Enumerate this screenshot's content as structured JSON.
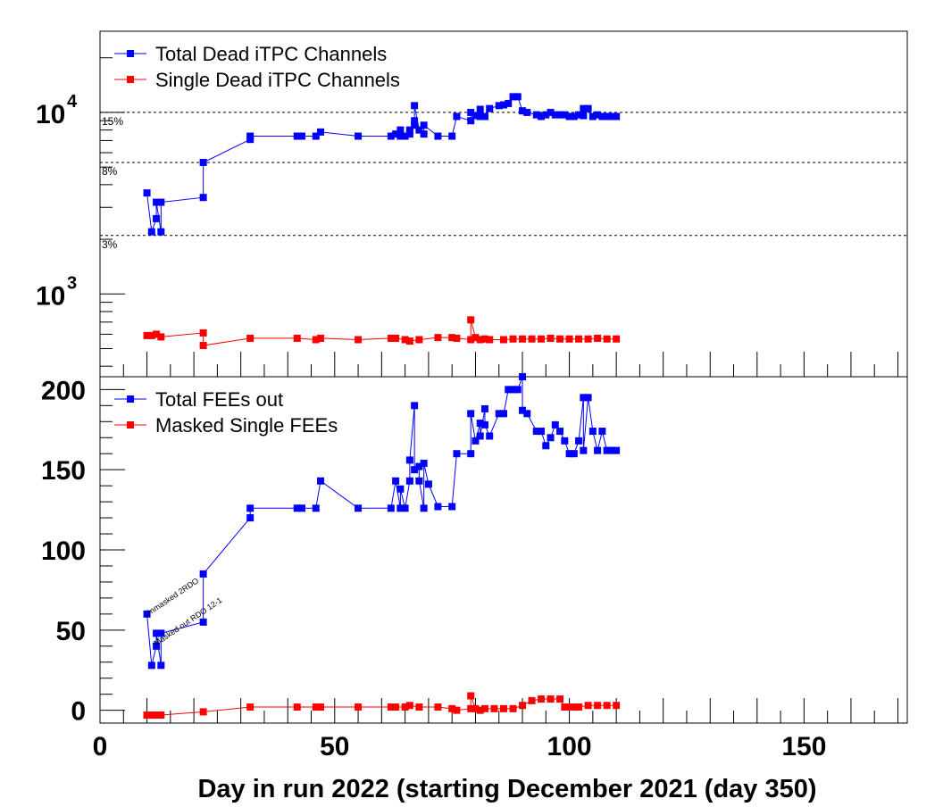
{
  "chart_data": [
    {
      "type": "line",
      "yscale": "log",
      "ylim": [
        350,
        28000
      ],
      "xlim": [
        0,
        172
      ],
      "ytick_labels": [
        {
          "base": "10",
          "exp": "4",
          "value": 10000
        },
        {
          "base": "10",
          "exp": "3",
          "value": 1000
        }
      ],
      "grid": false,
      "reference_lines": [
        {
          "label": "15%",
          "value": 10000
        },
        {
          "label": "8%",
          "value": 5300
        },
        {
          "label": "3%",
          "value": 2100
        }
      ],
      "legend": {
        "placement": "top-left"
      },
      "series": [
        {
          "name": "Total Dead iTPC Channels",
          "color": "#0000ff",
          "points": [
            [
              10,
              3600
            ],
            [
              11,
              2200
            ],
            [
              12,
              2600
            ],
            [
              12,
              3200
            ],
            [
              13,
              2200
            ],
            [
              13,
              3200
            ],
            [
              22,
              3400
            ],
            [
              22,
              5300
            ],
            [
              32,
              7100
            ],
            [
              32,
              7400
            ],
            [
              42,
              7400
            ],
            [
              43,
              7400
            ],
            [
              46,
              7400
            ],
            [
              47,
              7800
            ],
            [
              55,
              7400
            ],
            [
              62,
              7400
            ],
            [
              63,
              7600
            ],
            [
              64,
              7400
            ],
            [
              64,
              8000
            ],
            [
              65,
              7400
            ],
            [
              66,
              7600
            ],
            [
              66,
              8000
            ],
            [
              67,
              8500
            ],
            [
              67,
              9000
            ],
            [
              67,
              10900
            ],
            [
              68,
              8000
            ],
            [
              69,
              7600
            ],
            [
              69,
              8500
            ],
            [
              72,
              7400
            ],
            [
              75,
              7400
            ],
            [
              76,
              9500
            ],
            [
              79,
              9000
            ],
            [
              79,
              10000
            ],
            [
              80,
              9600
            ],
            [
              81,
              10400
            ],
            [
              81,
              9500
            ],
            [
              82,
              9500
            ],
            [
              83,
              10500
            ],
            [
              85,
              10900
            ],
            [
              86,
              11000
            ],
            [
              87,
              11200
            ],
            [
              88,
              12200
            ],
            [
              89,
              12200
            ],
            [
              90,
              10200
            ],
            [
              91,
              10000
            ],
            [
              93,
              9700
            ],
            [
              94,
              9500
            ],
            [
              95,
              9700
            ],
            [
              96,
              10000
            ],
            [
              97,
              9700
            ],
            [
              98,
              9700
            ],
            [
              99,
              9700
            ],
            [
              100,
              9500
            ],
            [
              101,
              9500
            ],
            [
              102,
              9700
            ],
            [
              103,
              10500
            ],
            [
              103,
              9600
            ],
            [
              104,
              10500
            ],
            [
              105,
              9500
            ],
            [
              106,
              9700
            ],
            [
              107,
              9500
            ],
            [
              108,
              9500
            ],
            [
              109,
              9500
            ],
            [
              110,
              9500
            ]
          ]
        },
        {
          "name": "Single Dead iTPC Channels",
          "color": "#ff0000",
          "points": [
            [
              10,
              590
            ],
            [
              11,
              590
            ],
            [
              12,
              600
            ],
            [
              13,
              580
            ],
            [
              22,
              610
            ],
            [
              22,
              520
            ],
            [
              32,
              570
            ],
            [
              42,
              570
            ],
            [
              46,
              560
            ],
            [
              47,
              570
            ],
            [
              55,
              560
            ],
            [
              62,
              570
            ],
            [
              63,
              570
            ],
            [
              65,
              560
            ],
            [
              66,
              550
            ],
            [
              68,
              560
            ],
            [
              72,
              575
            ],
            [
              75,
              575
            ],
            [
              76,
              570
            ],
            [
              79,
              560
            ],
            [
              79,
              720
            ],
            [
              80,
              575
            ],
            [
              81,
              560
            ],
            [
              82,
              565
            ],
            [
              83,
              560
            ],
            [
              86,
              560
            ],
            [
              88,
              565
            ],
            [
              90,
              565
            ],
            [
              92,
              565
            ],
            [
              94,
              565
            ],
            [
              96,
              570
            ],
            [
              98,
              565
            ],
            [
              100,
              565
            ],
            [
              102,
              565
            ],
            [
              104,
              565
            ],
            [
              106,
              570
            ],
            [
              108,
              565
            ],
            [
              110,
              565
            ]
          ]
        }
      ]
    },
    {
      "type": "line",
      "xlabel": "Day in run 2022 (starting  December 2021 (day 350)",
      "xlim": [
        0,
        172
      ],
      "ylim": [
        -8,
        208
      ],
      "xticks": [
        0,
        50,
        100,
        150
      ],
      "yticks": [
        0,
        50,
        100,
        150,
        200
      ],
      "grid": false,
      "legend": {
        "placement": "top-left"
      },
      "annotations": [
        {
          "text": "Unmasked 2RDO",
          "x": 10,
          "y": 58
        },
        {
          "text": "Masked out RDO 12-1",
          "x": 12,
          "y": 40
        }
      ],
      "series": [
        {
          "name": "Total FEEs out",
          "color": "#0000ff",
          "points": [
            [
              10,
              60
            ],
            [
              11,
              28
            ],
            [
              12,
              40
            ],
            [
              12,
              48
            ],
            [
              13,
              28
            ],
            [
              13,
              48
            ],
            [
              22,
              55
            ],
            [
              22,
              85
            ],
            [
              32,
              120
            ],
            [
              32,
              126
            ],
            [
              42,
              126
            ],
            [
              43,
              126
            ],
            [
              46,
              126
            ],
            [
              47,
              143
            ],
            [
              55,
              126
            ],
            [
              62,
              126
            ],
            [
              63,
              143
            ],
            [
              64,
              126
            ],
            [
              64,
              138
            ],
            [
              65,
              126
            ],
            [
              66,
              143
            ],
            [
              66,
              156
            ],
            [
              67,
              190
            ],
            [
              67,
              150
            ],
            [
              68,
              152
            ],
            [
              68,
              143
            ],
            [
              69,
              126
            ],
            [
              69,
              154
            ],
            [
              70,
              141
            ],
            [
              72,
              127
            ],
            [
              75,
              127
            ],
            [
              76,
              160
            ],
            [
              79,
              160
            ],
            [
              79,
              185
            ],
            [
              80,
              168
            ],
            [
              81,
              179
            ],
            [
              81,
              171
            ],
            [
              82,
              188
            ],
            [
              82,
              178
            ],
            [
              83,
              171
            ],
            [
              85,
              185
            ],
            [
              86,
              185
            ],
            [
              87,
              200
            ],
            [
              88,
              200
            ],
            [
              89,
              200
            ],
            [
              90,
              210
            ],
            [
              90,
              187
            ],
            [
              91,
              185
            ],
            [
              93,
              174
            ],
            [
              94,
              174
            ],
            [
              95,
              165
            ],
            [
              96,
              170
            ],
            [
              97,
              178
            ],
            [
              98,
              174
            ],
            [
              99,
              168
            ],
            [
              100,
              160
            ],
            [
              101,
              160
            ],
            [
              102,
              168
            ],
            [
              103,
              195
            ],
            [
              103,
              162
            ],
            [
              104,
              195
            ],
            [
              105,
              174
            ],
            [
              106,
              162
            ],
            [
              107,
              174
            ],
            [
              108,
              162
            ],
            [
              109,
              162
            ],
            [
              110,
              162
            ]
          ]
        },
        {
          "name": "Masked Single FEEs",
          "color": "#ff0000",
          "points": [
            [
              10,
              -3
            ],
            [
              11,
              -3
            ],
            [
              12,
              -3
            ],
            [
              13,
              -3
            ],
            [
              22,
              -1
            ],
            [
              32,
              2
            ],
            [
              42,
              2
            ],
            [
              46,
              2
            ],
            [
              47,
              2
            ],
            [
              55,
              2
            ],
            [
              62,
              2
            ],
            [
              63,
              2
            ],
            [
              65,
              2
            ],
            [
              66,
              3
            ],
            [
              68,
              2
            ],
            [
              72,
              2
            ],
            [
              75,
              1
            ],
            [
              76,
              0
            ],
            [
              79,
              1
            ],
            [
              79,
              9
            ],
            [
              80,
              1
            ],
            [
              81,
              0
            ],
            [
              82,
              1
            ],
            [
              84,
              1
            ],
            [
              86,
              1
            ],
            [
              88,
              1
            ],
            [
              90,
              3
            ],
            [
              92,
              6
            ],
            [
              94,
              7
            ],
            [
              96,
              7
            ],
            [
              98,
              7
            ],
            [
              99,
              2
            ],
            [
              100,
              2
            ],
            [
              101,
              2
            ],
            [
              102,
              2
            ],
            [
              104,
              3
            ],
            [
              106,
              3
            ],
            [
              108,
              3
            ],
            [
              110,
              3
            ]
          ]
        }
      ]
    }
  ]
}
